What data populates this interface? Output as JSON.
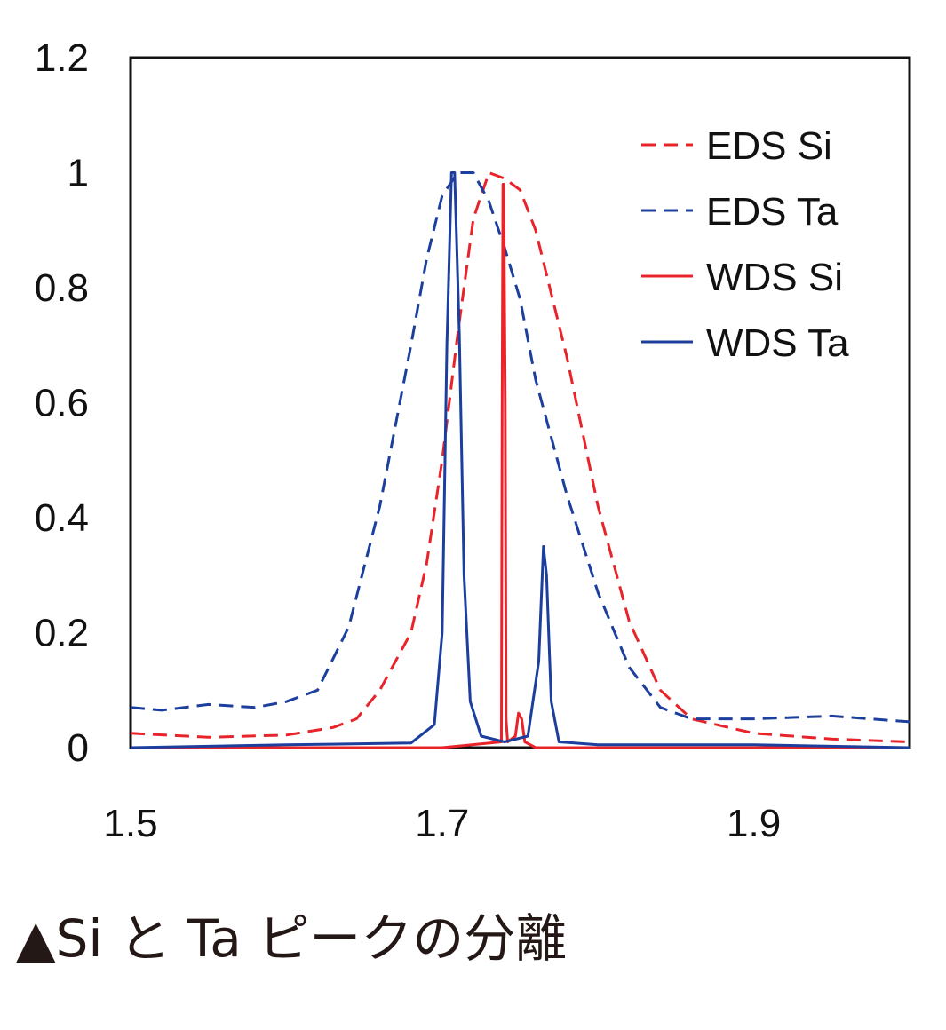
{
  "chart_data": {
    "type": "line",
    "title": "",
    "xlabel": "",
    "ylabel": "",
    "xlim": [
      1.5,
      2.0
    ],
    "ylim": [
      0,
      1.2
    ],
    "x_ticks": [
      "1.5",
      "1.7",
      "1.9"
    ],
    "x_tick_values": [
      1.5,
      1.7,
      1.9
    ],
    "y_ticks": [
      "0",
      "0.2",
      "0.4",
      "0.6",
      "0.8",
      "1",
      "1.2"
    ],
    "y_tick_values": [
      0,
      0.2,
      0.4,
      0.6,
      0.8,
      1.0,
      1.2
    ],
    "legend_position": "top-right",
    "grid": false,
    "series": [
      {
        "name": "EDS Si",
        "color": "#e8242a",
        "dash": "dashed",
        "x": [
          1.5,
          1.55,
          1.6,
          1.63,
          1.645,
          1.66,
          1.68,
          1.69,
          1.7,
          1.71,
          1.72,
          1.73,
          1.74,
          1.75,
          1.76,
          1.78,
          1.8,
          1.82,
          1.84,
          1.86,
          1.9,
          1.95,
          2.0
        ],
        "y": [
          0.025,
          0.018,
          0.022,
          0.035,
          0.05,
          0.1,
          0.2,
          0.32,
          0.5,
          0.72,
          0.92,
          1.0,
          0.99,
          0.97,
          0.9,
          0.68,
          0.42,
          0.22,
          0.1,
          0.05,
          0.025,
          0.015,
          0.01
        ]
      },
      {
        "name": "EDS Ta",
        "color": "#1c3f9e",
        "dash": "dashed",
        "x": [
          1.5,
          1.52,
          1.55,
          1.58,
          1.6,
          1.62,
          1.64,
          1.66,
          1.68,
          1.69,
          1.7,
          1.71,
          1.72,
          1.73,
          1.74,
          1.75,
          1.76,
          1.78,
          1.8,
          1.82,
          1.84,
          1.86,
          1.9,
          1.95,
          2.0
        ],
        "y": [
          0.07,
          0.065,
          0.075,
          0.07,
          0.08,
          0.1,
          0.21,
          0.42,
          0.7,
          0.85,
          0.96,
          1.0,
          1.0,
          0.95,
          0.87,
          0.78,
          0.64,
          0.44,
          0.27,
          0.14,
          0.07,
          0.05,
          0.05,
          0.055,
          0.045
        ]
      },
      {
        "name": "WDS Si",
        "color": "#e8242a",
        "dash": "solid",
        "x": [
          1.5,
          1.7,
          1.738,
          1.7385,
          1.739,
          1.7395,
          1.7405,
          1.741,
          1.742,
          1.747,
          1.749,
          1.751,
          1.753,
          1.76,
          1.8,
          1.9,
          2.0
        ],
        "y": [
          0.0,
          0.0,
          0.01,
          0.6,
          0.98,
          0.98,
          0.6,
          0.05,
          0.01,
          0.02,
          0.06,
          0.05,
          0.01,
          0.0,
          0.0,
          0.0,
          0.0
        ]
      },
      {
        "name": "WDS Ta",
        "color": "#1c3f9e",
        "dash": "solid",
        "x": [
          1.5,
          1.6,
          1.68,
          1.695,
          1.7,
          1.703,
          1.706,
          1.708,
          1.711,
          1.714,
          1.718,
          1.725,
          1.74,
          1.755,
          1.762,
          1.765,
          1.767,
          1.77,
          1.775,
          1.8,
          1.9,
          2.0
        ],
        "y": [
          0.0,
          0.005,
          0.008,
          0.04,
          0.2,
          0.7,
          1.0,
          1.0,
          0.72,
          0.3,
          0.08,
          0.02,
          0.01,
          0.02,
          0.15,
          0.35,
          0.3,
          0.08,
          0.01,
          0.005,
          0.005,
          0.0
        ]
      }
    ]
  },
  "caption": "▲Si と Ta ピークの分離"
}
